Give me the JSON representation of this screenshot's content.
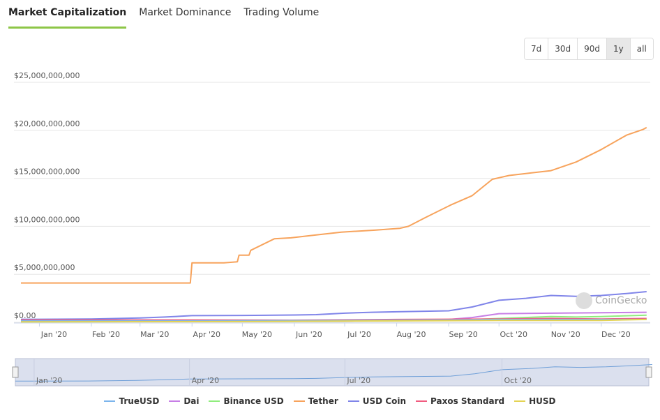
{
  "tabs": [
    "Market Capitalization",
    "Market Dominance",
    "Trading Volume"
  ],
  "ranges": [
    "7d",
    "30d",
    "90d",
    "1y",
    "all"
  ],
  "selected_range": "1y",
  "watermark": "CoinGecko",
  "colors": {
    "TrueUSD": "#7cb5ec",
    "Dai": "#c77ee6",
    "Binance USD": "#90ed7d",
    "Tether": "#f7a35c",
    "USD Coin": "#8085e9",
    "Paxos Standard": "#f15c80",
    "HUSD": "#e4d354"
  },
  "chart_data": {
    "type": "line",
    "title": "Market Capitalization",
    "xlabel": "",
    "ylabel": "",
    "ylim": [
      0,
      25000000000
    ],
    "yticks": [
      "$0.00",
      "$5,000,000,000",
      "$10,000,000,000",
      "$15,000,000,000",
      "$20,000,000,000",
      "$25,000,000,000"
    ],
    "ytick_values": [
      0,
      5000000000,
      10000000000,
      15000000000,
      20000000000,
      25000000000
    ],
    "xticks": [
      "Jan '20",
      "Feb '20",
      "Mar '20",
      "Apr '20",
      "May '20",
      "Jun '20",
      "Jul '20",
      "Aug '20",
      "Sep '20",
      "Oct '20",
      "Nov '20",
      "Dec '20"
    ],
    "xlim_days": [
      -11,
      360
    ],
    "series": [
      {
        "name": "Tether",
        "points": [
          [
            -11,
            4100000000.0
          ],
          [
            0,
            4100000000.0
          ],
          [
            31,
            4100000000.0
          ],
          [
            60,
            4100000000.0
          ],
          [
            75,
            4100000000.0
          ],
          [
            90,
            4100000000.0
          ],
          [
            91,
            6200000000.0
          ],
          [
            110,
            6200000000.0
          ],
          [
            118,
            6300000000.0
          ],
          [
            119,
            7000000000.0
          ],
          [
            125,
            7000000000.0
          ],
          [
            126,
            7500000000.0
          ],
          [
            140,
            8700000000.0
          ],
          [
            150,
            8800000000.0
          ],
          [
            165,
            9100000000.0
          ],
          [
            180,
            9400000000.0
          ],
          [
            200,
            9600000000.0
          ],
          [
            215,
            9800000000.0
          ],
          [
            220,
            10000000000.0
          ],
          [
            230,
            10900000000.0
          ],
          [
            245,
            12200000000.0
          ],
          [
            258,
            13200000000.0
          ],
          [
            270,
            14900000000.0
          ],
          [
            280,
            15300000000.0
          ],
          [
            290,
            15500000000.0
          ],
          [
            305,
            15800000000.0
          ],
          [
            320,
            16700000000.0
          ],
          [
            335,
            18000000000.0
          ],
          [
            350,
            19500000000.0
          ],
          [
            360,
            20100000000.0
          ],
          [
            362,
            20300000000.0
          ]
        ]
      },
      {
        "name": "USD Coin",
        "points": [
          [
            -11,
            320000000.0
          ],
          [
            0,
            320000000.0
          ],
          [
            31,
            350000000.0
          ],
          [
            60,
            450000000.0
          ],
          [
            75,
            550000000.0
          ],
          [
            91,
            700000000.0
          ],
          [
            121,
            720000000.0
          ],
          [
            152,
            760000000.0
          ],
          [
            165,
            800000000.0
          ],
          [
            182,
            950000000.0
          ],
          [
            198,
            1050000000.0
          ],
          [
            213,
            1100000000.0
          ],
          [
            244,
            1200000000.0
          ],
          [
            258,
            1600000000.0
          ],
          [
            274,
            2300000000.0
          ],
          [
            290,
            2500000000.0
          ],
          [
            305,
            2800000000.0
          ],
          [
            320,
            2700000000.0
          ],
          [
            335,
            2800000000.0
          ],
          [
            350,
            3000000000.0
          ],
          [
            362,
            3200000000.0
          ]
        ]
      },
      {
        "name": "Dai",
        "points": [
          [
            -11,
            100000000.0
          ],
          [
            100,
            100000000.0
          ],
          [
            182,
            130000000.0
          ],
          [
            213,
            200000000.0
          ],
          [
            244,
            300000000.0
          ],
          [
            258,
            500000000.0
          ],
          [
            274,
            900000000.0
          ],
          [
            305,
            950000000.0
          ],
          [
            335,
            1000000000.0
          ],
          [
            362,
            1050000000.0
          ]
        ]
      },
      {
        "name": "Binance USD",
        "points": [
          [
            -11,
            50000000.0
          ],
          [
            150,
            100000000.0
          ],
          [
            244,
            200000000.0
          ],
          [
            274,
            400000000.0
          ],
          [
            305,
            600000000.0
          ],
          [
            320,
            550000000.0
          ],
          [
            335,
            600000000.0
          ],
          [
            362,
            750000000.0
          ]
        ]
      },
      {
        "name": "Paxos Standard",
        "points": [
          [
            -11,
            250000000.0
          ],
          [
            91,
            250000000.0
          ],
          [
            150,
            220000000.0
          ],
          [
            213,
            300000000.0
          ],
          [
            274,
            350000000.0
          ],
          [
            305,
            400000000.0
          ],
          [
            335,
            350000000.0
          ],
          [
            362,
            400000000.0
          ]
        ]
      },
      {
        "name": "TrueUSD",
        "points": [
          [
            -11,
            150000000.0
          ],
          [
            91,
            150000000.0
          ],
          [
            182,
            200000000.0
          ],
          [
            244,
            250000000.0
          ],
          [
            274,
            300000000.0
          ],
          [
            305,
            300000000.0
          ],
          [
            362,
            300000000.0
          ]
        ]
      },
      {
        "name": "HUSD",
        "points": [
          [
            -11,
            50000000.0
          ],
          [
            121,
            80000000.0
          ],
          [
            213,
            150000000.0
          ],
          [
            274,
            200000000.0
          ],
          [
            335,
            200000000.0
          ],
          [
            362,
            300000000.0
          ]
        ]
      }
    ],
    "navigator_ticks": [
      "Jan '20",
      "Apr '20",
      "Jul '20",
      "Oct '20"
    ]
  }
}
